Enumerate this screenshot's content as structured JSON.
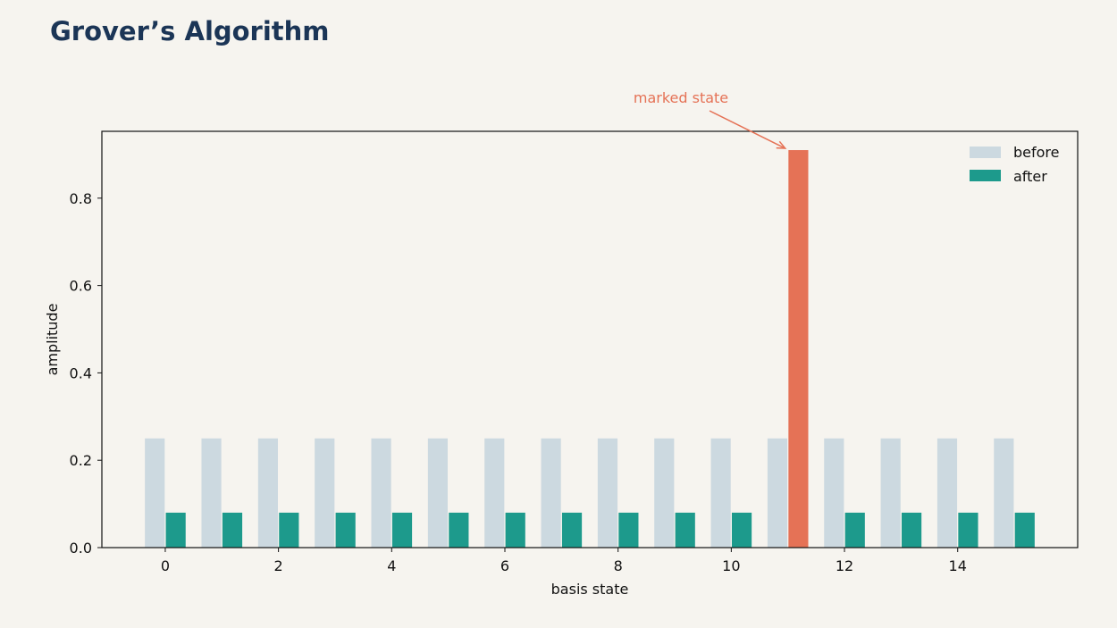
{
  "title": "Grover’s Algorithm",
  "colors": {
    "background": "#f6f4ef",
    "title": "#1b3556",
    "before": "#ccd9e0",
    "after": "#1d9a8c",
    "marked": "#e57256",
    "axis": "#111111"
  },
  "chart_data": {
    "type": "bar",
    "xlabel": "basis state",
    "ylabel": "amplitude",
    "x": [
      0,
      1,
      2,
      3,
      4,
      5,
      6,
      7,
      8,
      9,
      10,
      11,
      12,
      13,
      14,
      15
    ],
    "x_ticks": [
      0,
      2,
      4,
      6,
      8,
      10,
      12,
      14
    ],
    "y_ticks": [
      0.0,
      0.2,
      0.4,
      0.6,
      0.8
    ],
    "y_tick_labels": [
      "0.0",
      "0.2",
      "0.4",
      "0.6",
      "0.8"
    ],
    "xlim": [
      -1.12,
      16.12
    ],
    "ylim": [
      0,
      0.953
    ],
    "grid": false,
    "legend_position": "top-right",
    "series": [
      {
        "name": "before",
        "values": [
          0.25,
          0.25,
          0.25,
          0.25,
          0.25,
          0.25,
          0.25,
          0.25,
          0.25,
          0.25,
          0.25,
          0.25,
          0.25,
          0.25,
          0.25,
          0.25
        ]
      },
      {
        "name": "after",
        "values": [
          0.08,
          0.08,
          0.08,
          0.08,
          0.08,
          0.08,
          0.08,
          0.08,
          0.08,
          0.08,
          0.08,
          0.91,
          0.08,
          0.08,
          0.08,
          0.08
        ]
      }
    ],
    "highlight": {
      "series": "after",
      "x": 11
    },
    "annotation": {
      "text": "marked state",
      "target_x": 11,
      "target_y": 0.91
    }
  }
}
